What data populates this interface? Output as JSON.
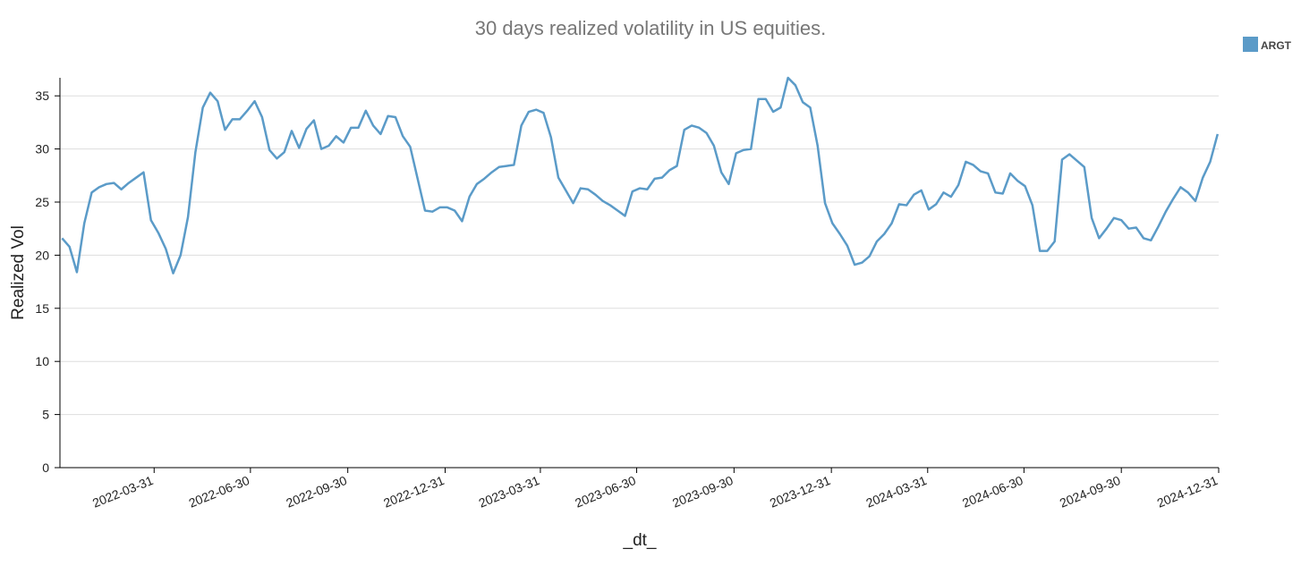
{
  "chart_data": {
    "type": "line",
    "title": "30 days realized volatility in US equities.",
    "xlabel": "_dt_",
    "ylabel": "Realized Vol",
    "xlim": [
      "2022-01-01",
      "2024-12-31"
    ],
    "xticks": [
      "2022-03-31",
      "2022-06-30",
      "2022-09-30",
      "2022-12-31",
      "2023-03-31",
      "2023-06-30",
      "2023-09-30",
      "2023-12-31",
      "2024-03-31",
      "2024-06-30",
      "2024-09-30",
      "2024-12-31"
    ],
    "ylim": [
      0,
      36.7
    ],
    "yticks": [
      0,
      5,
      10,
      15,
      20,
      25,
      30,
      35
    ],
    "grid": true,
    "legend": "top-right",
    "x": [
      "2022-01-03",
      "2022-01-10",
      "2022-01-17",
      "2022-01-24",
      "2022-01-31",
      "2022-02-07",
      "2022-02-14",
      "2022-02-21",
      "2022-02-28",
      "2022-03-07",
      "2022-03-14",
      "2022-03-21",
      "2022-03-28",
      "2022-04-04",
      "2022-04-11",
      "2022-04-18",
      "2022-04-25",
      "2022-05-02",
      "2022-05-09",
      "2022-05-16",
      "2022-05-23",
      "2022-05-30",
      "2022-06-06",
      "2022-06-13",
      "2022-06-20",
      "2022-06-27",
      "2022-07-04",
      "2022-07-11",
      "2022-07-18",
      "2022-07-25",
      "2022-08-01",
      "2022-08-08",
      "2022-08-15",
      "2022-08-22",
      "2022-08-29",
      "2022-09-05",
      "2022-09-12",
      "2022-09-19",
      "2022-09-26",
      "2022-10-03",
      "2022-10-10",
      "2022-10-17",
      "2022-10-24",
      "2022-10-31",
      "2022-11-07",
      "2022-11-14",
      "2022-11-21",
      "2022-11-28",
      "2022-12-05",
      "2022-12-12",
      "2022-12-19",
      "2022-12-26",
      "2023-01-02",
      "2023-01-09",
      "2023-01-16",
      "2023-01-23",
      "2023-01-30",
      "2023-02-06",
      "2023-02-13",
      "2023-02-20",
      "2023-02-27",
      "2023-03-06",
      "2023-03-13",
      "2023-03-20",
      "2023-03-27",
      "2023-04-03",
      "2023-04-10",
      "2023-04-17",
      "2023-04-24",
      "2023-05-01",
      "2023-05-08",
      "2023-05-15",
      "2023-05-22",
      "2023-05-29",
      "2023-06-05",
      "2023-06-12",
      "2023-06-19",
      "2023-06-26",
      "2023-07-03",
      "2023-07-10",
      "2023-07-17",
      "2023-07-24",
      "2023-07-31",
      "2023-08-07",
      "2023-08-14",
      "2023-08-21",
      "2023-08-28",
      "2023-09-04",
      "2023-09-11",
      "2023-09-18",
      "2023-09-25",
      "2023-10-02",
      "2023-10-09",
      "2023-10-16",
      "2023-10-23",
      "2023-10-30",
      "2023-11-06",
      "2023-11-13",
      "2023-11-20",
      "2023-11-27",
      "2023-12-04",
      "2023-12-11",
      "2023-12-18",
      "2023-12-25",
      "2024-01-01",
      "2024-01-08",
      "2024-01-15",
      "2024-01-22",
      "2024-01-29",
      "2024-02-05",
      "2024-02-12",
      "2024-02-19",
      "2024-02-26",
      "2024-03-04",
      "2024-03-11",
      "2024-03-18",
      "2024-03-25",
      "2024-04-01",
      "2024-04-08",
      "2024-04-15",
      "2024-04-22",
      "2024-04-29",
      "2024-05-06",
      "2024-05-13",
      "2024-05-20",
      "2024-05-27",
      "2024-06-03",
      "2024-06-10",
      "2024-06-17",
      "2024-06-24",
      "2024-07-01",
      "2024-07-08",
      "2024-07-15",
      "2024-07-22",
      "2024-07-29",
      "2024-08-05",
      "2024-08-12",
      "2024-08-19",
      "2024-08-26",
      "2024-09-02",
      "2024-09-09",
      "2024-09-16",
      "2024-09-23",
      "2024-09-30",
      "2024-10-07",
      "2024-10-14",
      "2024-10-21",
      "2024-10-28",
      "2024-11-04",
      "2024-11-11",
      "2024-11-18",
      "2024-11-25",
      "2024-12-02",
      "2024-12-09",
      "2024-12-16",
      "2024-12-23",
      "2024-12-30"
    ],
    "series": [
      {
        "name": "ARGT",
        "color": "#5b9bc8",
        "values": [
          21.6,
          20.8,
          18.4,
          23,
          25.9,
          26.4,
          26.7,
          26.8,
          26.2,
          26.8,
          27.3,
          27.8,
          23.3,
          22.1,
          20.6,
          18.3,
          20,
          23.6,
          29.7,
          33.9,
          35.3,
          34.5,
          31.8,
          32.8,
          32.8,
          33.6,
          34.5,
          33,
          29.9,
          29.1,
          29.7,
          31.7,
          30.1,
          31.9,
          32.7,
          30,
          30.3,
          31.2,
          30.6,
          32,
          32,
          33.6,
          32.2,
          31.4,
          33.1,
          33,
          31.2,
          30.2,
          27.2,
          24.2,
          24.1,
          24.5,
          24.5,
          24.2,
          23.2,
          25.5,
          26.7,
          27.2,
          27.8,
          28.3,
          28.4,
          28.5,
          32.2,
          33.5,
          33.7,
          33.4,
          31.1,
          27.3,
          26.1,
          24.9,
          26.3,
          26.2,
          25.7,
          25.1,
          24.7,
          24.2,
          23.7,
          26,
          26.3,
          26.2,
          27.2,
          27.3,
          28,
          28.4,
          31.8,
          32.2,
          32,
          31.5,
          30.3,
          27.8,
          26.7,
          29.6,
          29.9,
          30,
          34.7,
          34.7,
          33.5,
          33.9,
          36.7,
          36,
          34.4,
          33.9,
          30.3,
          24.9,
          23,
          22,
          20.9,
          19.1,
          19.3,
          19.9,
          21.3,
          22,
          23,
          24.8,
          24.7,
          25.7,
          26.1,
          24.3,
          24.8,
          25.9,
          25.5,
          26.6,
          28.8,
          28.5,
          27.9,
          27.7,
          25.9,
          25.8,
          27.7,
          27,
          26.5,
          24.7,
          20.4,
          20.4,
          21.3,
          29,
          29.5,
          28.9,
          28.3,
          23.5,
          21.6,
          22.5,
          23.5,
          23.3,
          22.5,
          22.6,
          21.6,
          21.4,
          22.7,
          24.1,
          25.3,
          26.4,
          25.9,
          25.1,
          27.3,
          28.8,
          31.4
        ]
      }
    ]
  }
}
